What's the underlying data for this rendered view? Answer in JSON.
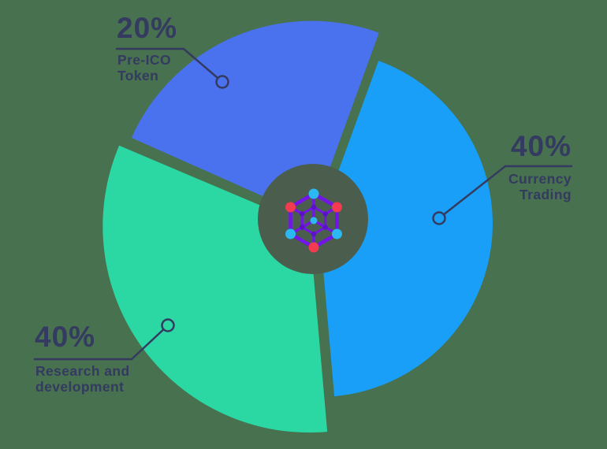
{
  "chart_data": {
    "type": "pie",
    "donut": true,
    "title": "",
    "legend_position": "callout-labels",
    "categories": [
      "Pre-ICO Token",
      "Currency Trading",
      "Research and development"
    ],
    "values": [
      20,
      40,
      40
    ],
    "slices": [
      {
        "label": "Pre-ICO Token",
        "label_lines": [
          "Pre-ICO",
          "Token"
        ],
        "value": 20,
        "percent_label": "20%",
        "color": "#4A72EE"
      },
      {
        "label": "Currency Trading",
        "label_lines": [
          "Currency",
          "Trading"
        ],
        "value": 40,
        "percent_label": "40%",
        "color": "#199FF8"
      },
      {
        "label": "Research and development",
        "label_lines": [
          "Research and",
          "development"
        ],
        "value": 40,
        "percent_label": "40%",
        "color": "#2BD8A4"
      }
    ]
  },
  "canvas": {
    "background_color": "#47714F",
    "donut_hole_color": "#4B5E4D",
    "text_color": "#343A60",
    "callout_line_color": "#343A60"
  },
  "logo": {
    "name": "blockchain-network-logo",
    "line_color": "#7214EA",
    "inner_node_color": "#5B10C9",
    "cyan_node_color": "#2CB9F2",
    "red_node_color": "#F23B51"
  }
}
